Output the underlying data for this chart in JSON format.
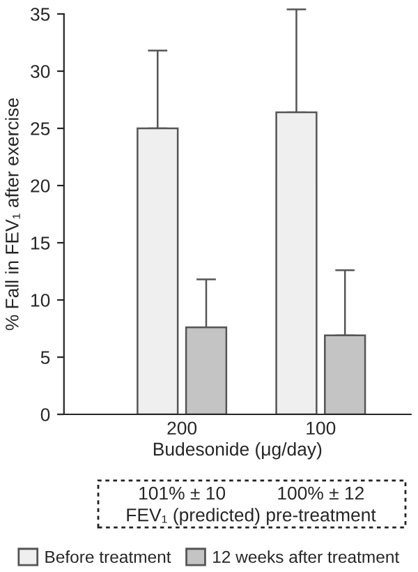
{
  "chart_data": {
    "type": "bar",
    "xlabel": "Budesonide (μg/day)",
    "ylabel": "% Fall in FEV₁ after exercise",
    "categories": [
      "200",
      "100"
    ],
    "series": [
      {
        "name": "Before treatment",
        "color": "#efefef",
        "values": [
          25,
          26.4
        ],
        "errors": [
          [
            25,
            31.8
          ],
          [
            26.4,
            35.4
          ]
        ]
      },
      {
        "name": "12 weeks after treatment",
        "color": "#c4c4c4",
        "values": [
          7.6,
          6.9
        ],
        "errors": [
          [
            7.6,
            11.8
          ],
          [
            6.9,
            12.6
          ]
        ]
      }
    ],
    "ylim": [
      0,
      35
    ],
    "yticks": [
      0,
      5,
      10,
      15,
      20,
      25,
      30,
      35
    ],
    "annotations": [
      "101% ± 10",
      "100% ± 12",
      "FEV₁ (predicted) pre-treatment"
    ],
    "grid": false,
    "legend": "bottom"
  }
}
